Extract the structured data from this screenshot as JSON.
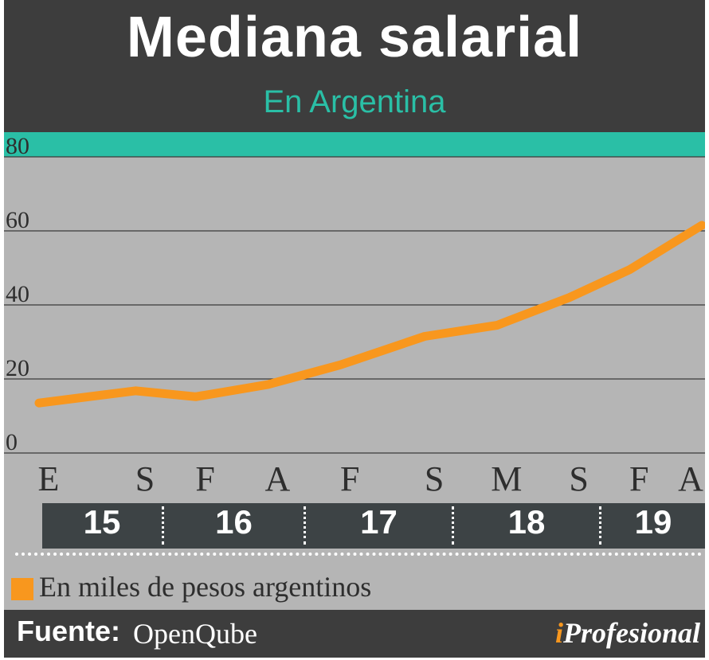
{
  "header": {
    "title": "Mediana salarial",
    "subtitle": "En Argentina"
  },
  "legend": {
    "label": "En miles de pesos argentinos",
    "color": "#f8971e"
  },
  "footer": {
    "source_label": "Fuente:",
    "source_value": "OpenQube",
    "brand_i": "i",
    "brand_rest": "Profesional"
  },
  "colors": {
    "header_bg": "#3d3d3d",
    "accent_teal": "#2abfa6",
    "plot_bg": "#b5b5b5",
    "line": "#f8971e"
  },
  "chart_data": {
    "type": "line",
    "title": "Mediana salarial",
    "subtitle": "En Argentina",
    "ylim": [
      0,
      80
    ],
    "yticks": [
      0,
      20,
      40,
      60,
      80
    ],
    "grid": true,
    "month_labels": [
      "E",
      "S",
      "F",
      "A",
      "F",
      "S",
      "M",
      "S",
      "F",
      "A"
    ],
    "year_labels": [
      "15",
      "16",
      "17",
      "18",
      "19"
    ],
    "series": [
      {
        "name": "En miles de pesos argentinos",
        "color": "#f8971e",
        "points": [
          {
            "x": "2015-01",
            "y": 13.5
          },
          {
            "x": "2015-09",
            "y": 16.8
          },
          {
            "x": "2016-02",
            "y": 15.2
          },
          {
            "x": "2016-08",
            "y": 18.5
          },
          {
            "x": "2017-02",
            "y": 23.8
          },
          {
            "x": "2017-09",
            "y": 31.5
          },
          {
            "x": "2018-03",
            "y": 34.5
          },
          {
            "x": "2018-09",
            "y": 42.0
          },
          {
            "x": "2019-02",
            "y": 49.5
          },
          {
            "x": "2019-08",
            "y": 61.5
          }
        ]
      }
    ]
  }
}
